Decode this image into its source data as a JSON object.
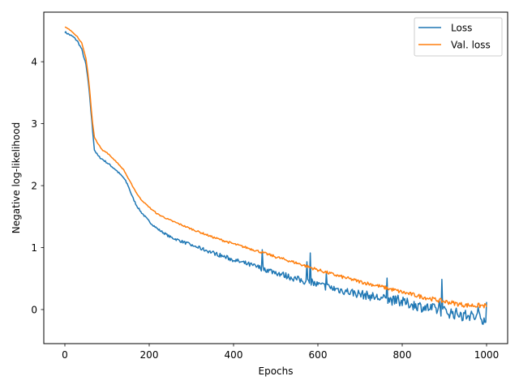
{
  "chart_data": {
    "type": "line",
    "title": "",
    "xlabel": "Epochs",
    "ylabel": "Negative log-likelihood",
    "xlim": [
      -50,
      1050
    ],
    "ylim": [
      -0.55,
      4.8
    ],
    "xticks": [
      0,
      200,
      400,
      600,
      800,
      1000
    ],
    "yticks": [
      0,
      1,
      2,
      3,
      4
    ],
    "grid": false,
    "legend_position": "top-right",
    "series": [
      {
        "name": "Loss",
        "color": "#1f77b4",
        "noise": "high",
        "x": [
          0,
          10,
          20,
          30,
          40,
          50,
          55,
          60,
          65,
          70,
          75,
          80,
          90,
          100,
          120,
          140,
          150,
          160,
          170,
          180,
          200,
          220,
          250,
          300,
          350,
          400,
          450,
          500,
          550,
          600,
          650,
          700,
          750,
          800,
          850,
          900,
          950,
          1000
        ],
        "y": [
          4.48,
          4.44,
          4.4,
          4.33,
          4.2,
          3.95,
          3.7,
          3.35,
          2.95,
          2.58,
          2.52,
          2.47,
          2.42,
          2.37,
          2.26,
          2.12,
          2.0,
          1.82,
          1.68,
          1.58,
          1.42,
          1.3,
          1.17,
          1.04,
          0.92,
          0.8,
          0.7,
          0.6,
          0.49,
          0.4,
          0.32,
          0.25,
          0.18,
          0.12,
          0.04,
          -0.03,
          -0.1,
          -0.14
        ]
      },
      {
        "name": "Val. loss",
        "color": "#ff7f0e",
        "noise": "low",
        "x": [
          0,
          10,
          20,
          30,
          40,
          50,
          55,
          60,
          65,
          70,
          75,
          80,
          90,
          100,
          120,
          140,
          150,
          160,
          170,
          180,
          200,
          220,
          250,
          300,
          350,
          400,
          450,
          500,
          550,
          600,
          650,
          700,
          750,
          800,
          850,
          900,
          950,
          1000
        ],
        "y": [
          4.56,
          4.52,
          4.47,
          4.4,
          4.3,
          4.05,
          3.8,
          3.45,
          3.05,
          2.78,
          2.72,
          2.66,
          2.57,
          2.53,
          2.4,
          2.25,
          2.12,
          2.0,
          1.88,
          1.78,
          1.65,
          1.54,
          1.44,
          1.3,
          1.17,
          1.06,
          0.96,
          0.85,
          0.75,
          0.64,
          0.54,
          0.45,
          0.37,
          0.28,
          0.2,
          0.13,
          0.07,
          0.06
        ]
      }
    ]
  }
}
